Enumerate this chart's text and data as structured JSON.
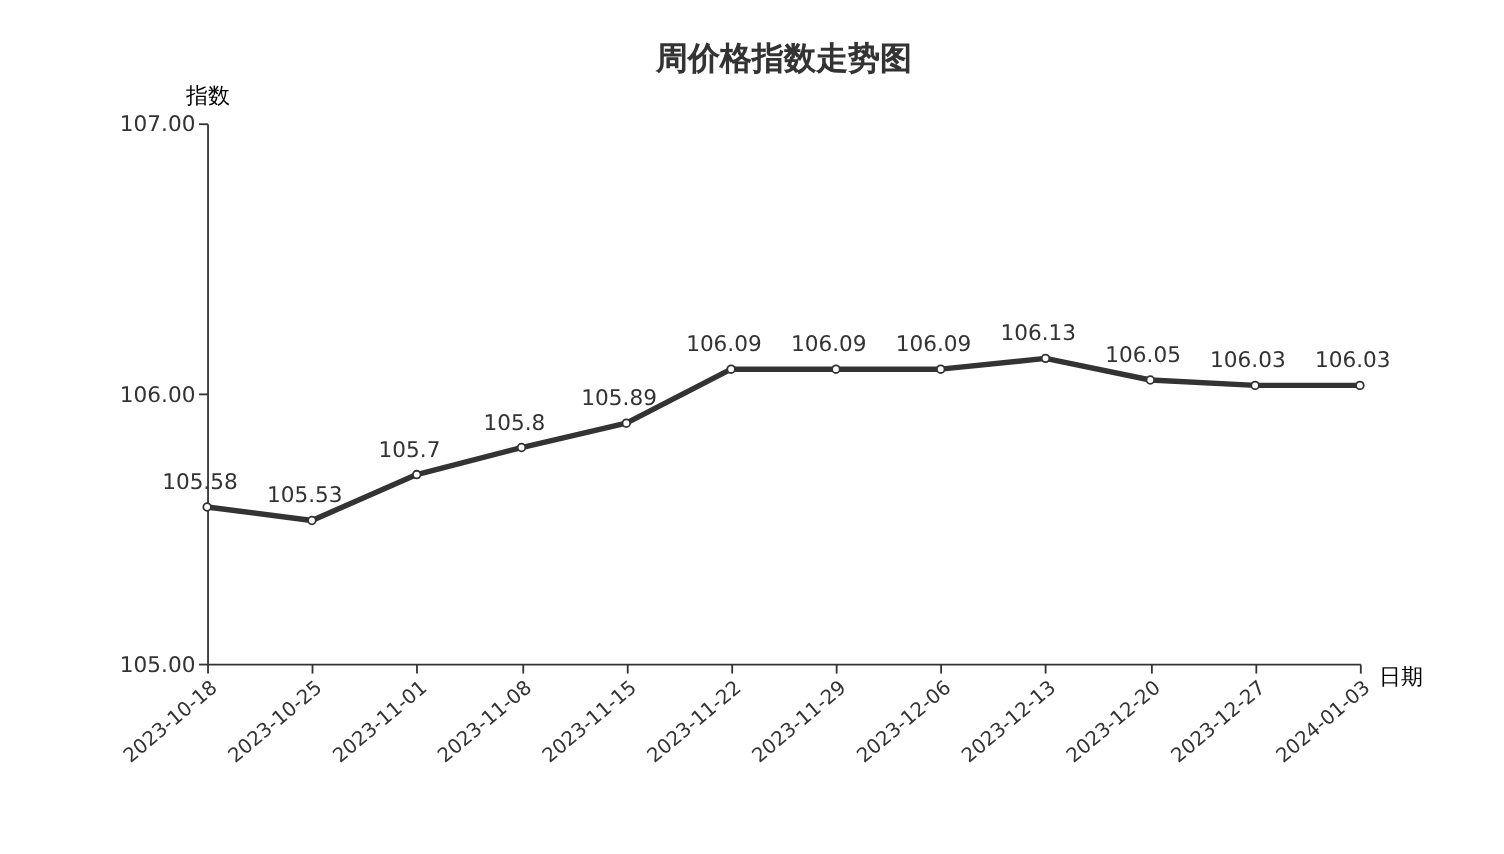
{
  "chart_data": {
    "type": "line",
    "title": "周价格指数走势图",
    "xlabel": "日期",
    "ylabel": "指数",
    "categories": [
      "2023-10-18",
      "2023-10-25",
      "2023-11-01",
      "2023-11-08",
      "2023-11-15",
      "2023-11-22",
      "2023-11-29",
      "2023-12-06",
      "2023-12-13",
      "2023-12-20",
      "2023-12-27",
      "2024-01-03"
    ],
    "series": [
      {
        "color": "#333333",
        "values": [
          105.58,
          105.53,
          105.7,
          105.8,
          105.89,
          106.09,
          106.09,
          106.09,
          106.13,
          106.05,
          106.03,
          106.03
        ]
      }
    ],
    "ylim": [
      105,
      107
    ],
    "yticks": [
      {
        "value": 105,
        "label": "105.00"
      },
      {
        "value": 106,
        "label": "106.00"
      },
      {
        "value": 107,
        "label": "107.00"
      }
    ],
    "data_labels": true,
    "grid": false,
    "marker": "circle",
    "line_style": "solid"
  }
}
